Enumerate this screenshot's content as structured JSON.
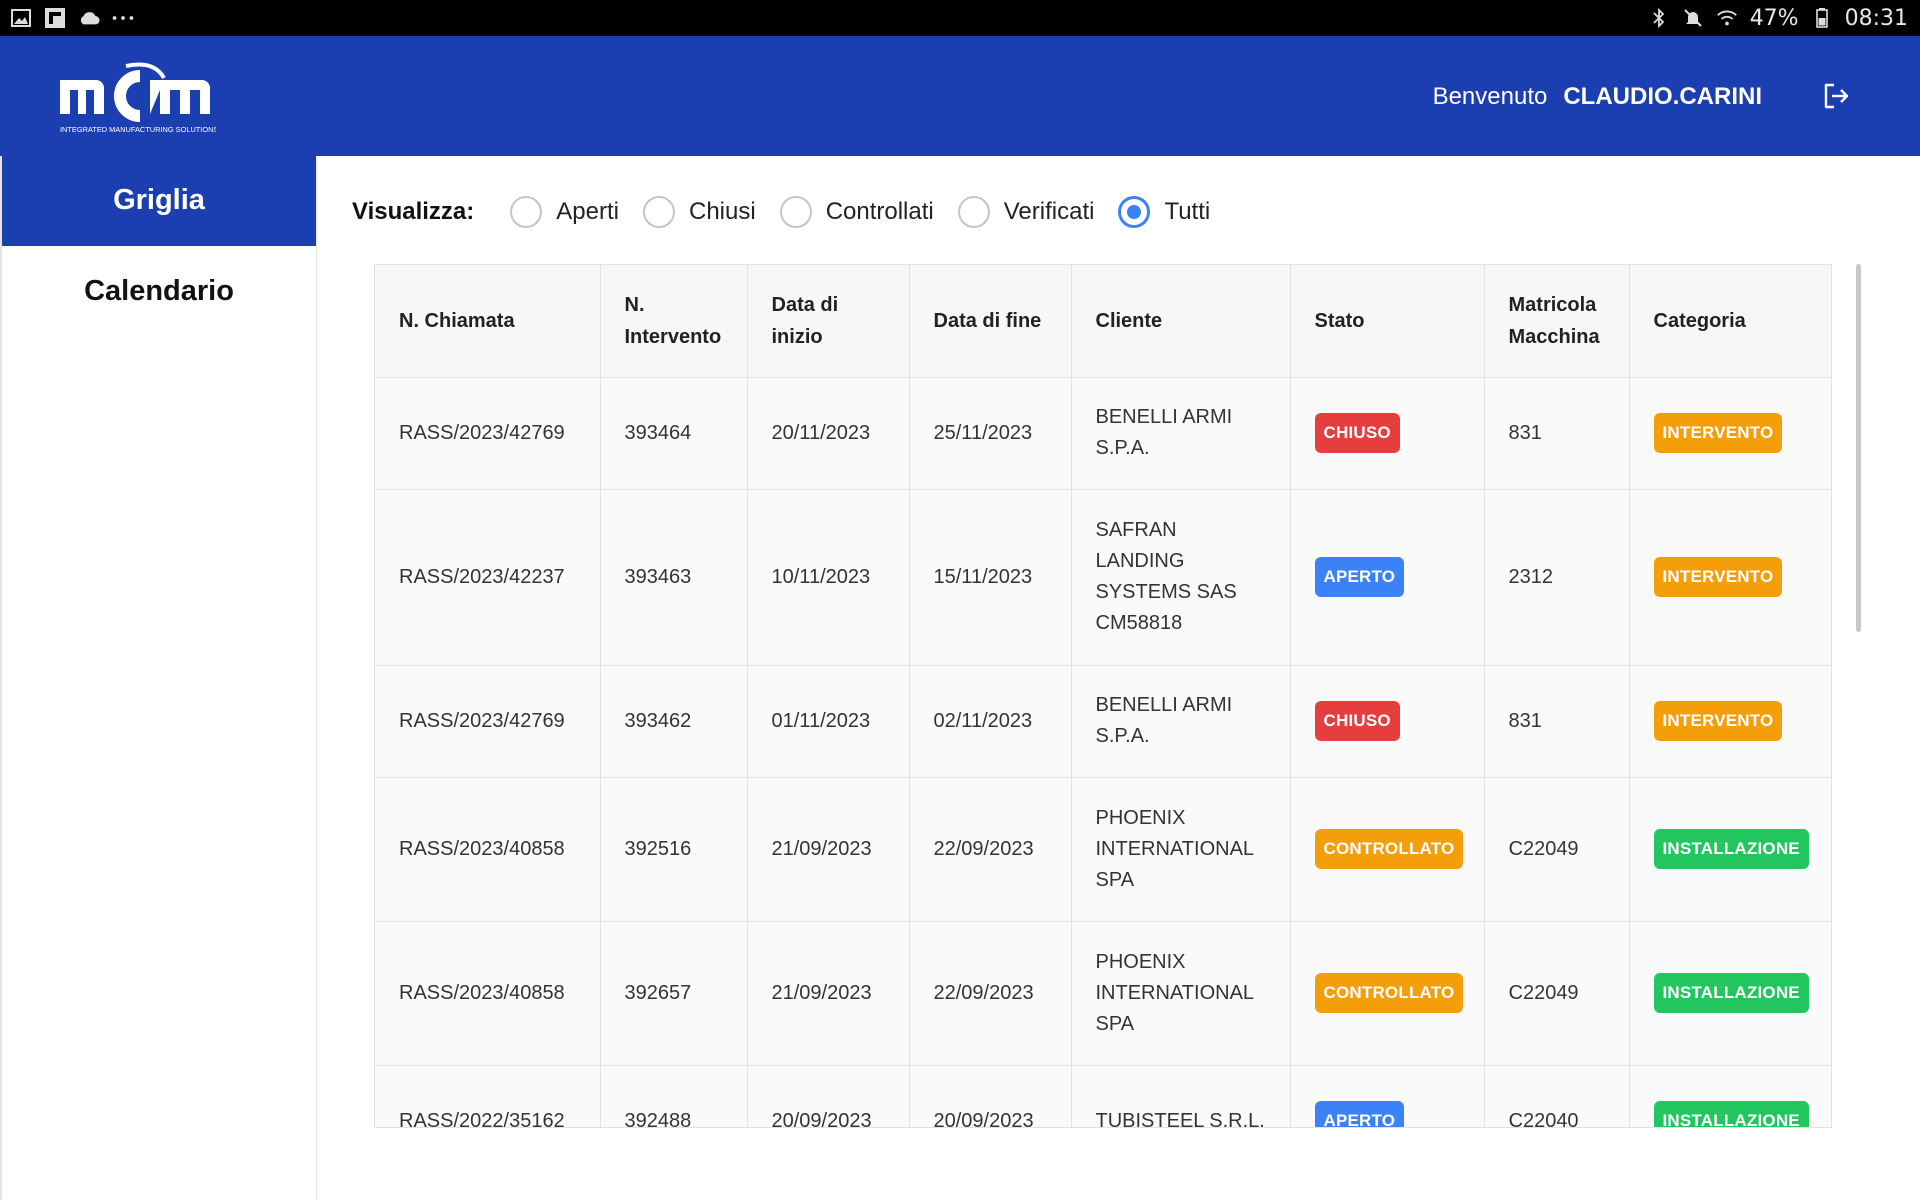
{
  "statusbar": {
    "battery_text": "47%",
    "time": "08:31",
    "left_icons": [
      "image-icon",
      "flipboard-icon",
      "cloud-icon",
      "more-dots-icon"
    ],
    "right_icons": [
      "bluetooth-icon",
      "mute-icon",
      "wifi-icon",
      "battery-icon"
    ]
  },
  "header": {
    "logo_text": "mcm",
    "logo_tagline": "INTEGRATED MANUFACTURING SOLUTIONS",
    "welcome_label": "Benvenuto",
    "username": "CLAUDIO.CARINI",
    "logout_icon": "logout-icon",
    "background": "#1b3fb0"
  },
  "sidebar": {
    "items": [
      {
        "label": "Griglia",
        "active": true
      },
      {
        "label": "Calendario",
        "active": false
      }
    ]
  },
  "filters": {
    "label": "Visualizza:",
    "options": [
      {
        "label": "Aperti",
        "checked": false
      },
      {
        "label": "Chiusi",
        "checked": false
      },
      {
        "label": "Controllati",
        "checked": false
      },
      {
        "label": "Verificati",
        "checked": false
      },
      {
        "label": "Tutti",
        "checked": true
      }
    ]
  },
  "table": {
    "columns": [
      "N. Chiamata",
      "N. Intervento",
      "Data di inizio",
      "Data di fine",
      "Cliente",
      "Stato",
      "Matricola Macchina",
      "Categoria"
    ],
    "rows": [
      {
        "chiamata": "RASS/2023/42769",
        "intervento": "393464",
        "inizio": "20/11/2023",
        "fine": "25/11/2023",
        "cliente": "BENELLI ARMI S.P.A.",
        "stato": "CHIUSO",
        "matricola": "831",
        "categoria": "INTERVENTO"
      },
      {
        "chiamata": "RASS/2023/42237",
        "intervento": "393463",
        "inizio": "10/11/2023",
        "fine": "15/11/2023",
        "cliente": "SAFRAN LANDING SYSTEMS SAS CM58818",
        "stato": "APERTO",
        "matricola": "2312",
        "categoria": "INTERVENTO"
      },
      {
        "chiamata": "RASS/2023/42769",
        "intervento": "393462",
        "inizio": "01/11/2023",
        "fine": "02/11/2023",
        "cliente": "BENELLI ARMI S.P.A.",
        "stato": "CHIUSO",
        "matricola": "831",
        "categoria": "INTERVENTO"
      },
      {
        "chiamata": "RASS/2023/40858",
        "intervento": "392516",
        "inizio": "21/09/2023",
        "fine": "22/09/2023",
        "cliente": "PHOENIX INTERNATIONAL SPA",
        "stato": "CONTROLLATO",
        "matricola": "C22049",
        "categoria": "INSTALLAZIONE"
      },
      {
        "chiamata": "RASS/2023/40858",
        "intervento": "392657",
        "inizio": "21/09/2023",
        "fine": "22/09/2023",
        "cliente": "PHOENIX INTERNATIONAL SPA",
        "stato": "CONTROLLATO",
        "matricola": "C22049",
        "categoria": "INSTALLAZIONE"
      },
      {
        "chiamata": "RASS/2022/35162",
        "intervento": "392488",
        "inizio": "20/09/2023",
        "fine": "20/09/2023",
        "cliente": "TUBISTEEL S.R.L.",
        "stato": "APERTO",
        "matricola": "C22040",
        "categoria": "INSTALLAZIONE"
      }
    ]
  },
  "badge_colors": {
    "CHIUSO": "#e53e3e",
    "APERTO": "#3b82f6",
    "CONTROLLATO": "#f59e0b",
    "INTERVENTO": "#f59e0b",
    "INSTALLAZIONE": "#22c55e"
  }
}
